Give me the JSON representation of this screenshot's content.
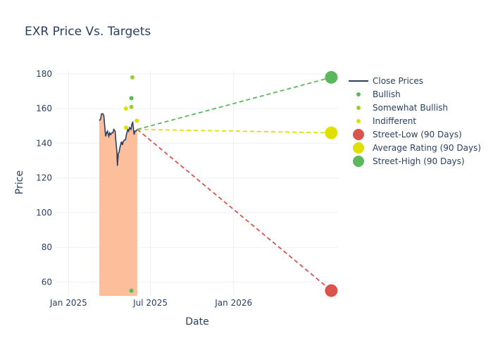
{
  "chart_data": {
    "type": "line",
    "title": "EXR Price Vs. Targets",
    "xlabel": "Date",
    "ylabel": "Price",
    "x_range": [
      "2024-12-05",
      "2026-08-20"
    ],
    "ylim": [
      52,
      182
    ],
    "x_ticks": [
      {
        "date": "2025-01-01",
        "label": "Jan 2025"
      },
      {
        "date": "2025-07-01",
        "label": "Jul 2025"
      },
      {
        "date": "2026-01-01",
        "label": "Jan 2026"
      }
    ],
    "y_ticks": [
      60,
      80,
      100,
      120,
      140,
      160,
      180
    ],
    "grid": true,
    "legend_position": "right",
    "close_prices": {
      "name": "Close Prices",
      "color": "#2a3f5f",
      "fill_color": "#fdbe9c",
      "points": [
        [
          "2025-03-10",
          153
        ],
        [
          "2025-03-13",
          154
        ],
        [
          "2025-03-15",
          157
        ],
        [
          "2025-03-18",
          157
        ],
        [
          "2025-03-20",
          156
        ],
        [
          "2025-03-22",
          150
        ],
        [
          "2025-03-24",
          144
        ],
        [
          "2025-03-26",
          146
        ],
        [
          "2025-03-28",
          147
        ],
        [
          "2025-03-31",
          144
        ],
        [
          "2025-04-02",
          146
        ],
        [
          "2025-04-04",
          145
        ],
        [
          "2025-04-07",
          146
        ],
        [
          "2025-04-09",
          146
        ],
        [
          "2025-04-11",
          148
        ],
        [
          "2025-04-14",
          147
        ],
        [
          "2025-04-16",
          140
        ],
        [
          "2025-04-18",
          135
        ],
        [
          "2025-04-19",
          127
        ],
        [
          "2025-04-21",
          134
        ],
        [
          "2025-04-23",
          135
        ],
        [
          "2025-04-25",
          138
        ],
        [
          "2025-04-28",
          141
        ],
        [
          "2025-04-30",
          139
        ],
        [
          "2025-05-02",
          141
        ],
        [
          "2025-05-05",
          142
        ],
        [
          "2025-05-07",
          142
        ],
        [
          "2025-05-09",
          145
        ],
        [
          "2025-05-12",
          148
        ],
        [
          "2025-05-14",
          147
        ],
        [
          "2025-05-16",
          149
        ],
        [
          "2025-05-19",
          148
        ],
        [
          "2025-05-21",
          151
        ],
        [
          "2025-05-23",
          152
        ],
        [
          "2025-05-26",
          145
        ],
        [
          "2025-05-28",
          147
        ],
        [
          "2025-05-30",
          147
        ],
        [
          "2025-06-02",
          148
        ]
      ]
    },
    "ratings": [
      {
        "name": "Bullish",
        "color": "#5cb85c",
        "points": [
          [
            "2025-05-20",
            55
          ],
          [
            "2025-05-20",
            166
          ]
        ]
      },
      {
        "name": "Somewhat Bullish",
        "color": "#9acd32",
        "points": [
          [
            "2025-05-22",
            178
          ],
          [
            "2025-05-20",
            161
          ]
        ]
      },
      {
        "name": "Indifferent",
        "color": "#e0e000",
        "points": [
          [
            "2025-05-08",
            160
          ],
          [
            "2025-05-08",
            149
          ],
          [
            "2025-06-01",
            153
          ]
        ]
      }
    ],
    "targets": [
      {
        "name": "Street-Low (90 Days)",
        "color": "#d9534f",
        "value": 55
      },
      {
        "name": "Average Rating (90 Days)",
        "color": "#e0e000",
        "value": 146
      },
      {
        "name": "Street-High (90 Days)",
        "color": "#5cb85c",
        "value": 178
      }
    ],
    "target_date": "2026-08-05",
    "projection_start": [
      "2025-06-02",
      148
    ]
  }
}
